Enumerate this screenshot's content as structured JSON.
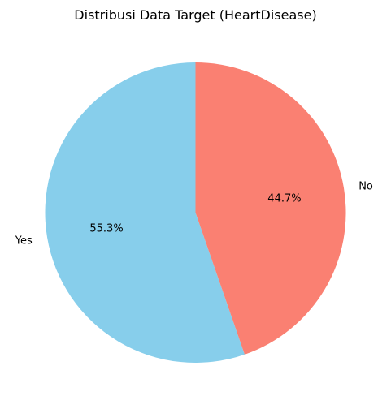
{
  "chart_data": {
    "type": "pie",
    "title": "Distribusi Data Target (HeartDisease)",
    "labels": [
      "Yes",
      "No"
    ],
    "values": [
      55.3,
      44.7
    ],
    "percent_labels": [
      "55.3%",
      "44.7%"
    ],
    "colors": [
      "#87ceeb",
      "#fa8072"
    ],
    "start_angle_deg": 90,
    "direction": "counterclockwise",
    "legend": "none"
  }
}
